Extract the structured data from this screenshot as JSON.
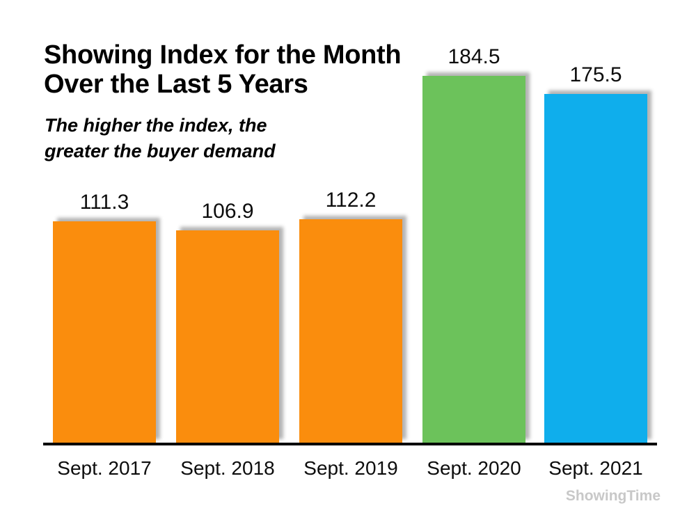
{
  "title": {
    "line1": "Showing Index for the Month",
    "line2": "Over the Last 5 Years"
  },
  "subtitle": {
    "line1": "The higher the index, the",
    "line2": "greater the buyer demand"
  },
  "watermark": "ShowingTime",
  "colors": {
    "orange": "#FA8D0D",
    "green": "#6CC25B",
    "blue": "#0FAEEC",
    "axis": "#000000",
    "watermark_gray": "#C8C8C8"
  },
  "chart_data": {
    "type": "bar",
    "title": "Showing Index for the Month Over the Last 5 Years",
    "subtitle": "The higher the index, the greater the buyer demand",
    "categories": [
      "Sept. 2017",
      "Sept. 2018",
      "Sept. 2019",
      "Sept. 2020",
      "Sept. 2021"
    ],
    "values": [
      111.3,
      106.9,
      112.2,
      184.5,
      175.5
    ],
    "data_labels": [
      "111.3",
      "106.9",
      "112.2",
      "184.5",
      "175.5"
    ],
    "bar_colors": [
      "#FA8D0D",
      "#FA8D0D",
      "#FA8D0D",
      "#6CC25B",
      "#0FAEEC"
    ],
    "xlabel": "",
    "ylabel": "",
    "ylim": [
      0,
      200
    ],
    "grid": false,
    "legend": false,
    "data_labels_position": "above-bars",
    "baseline_axis": "x-axis only, thick black"
  }
}
